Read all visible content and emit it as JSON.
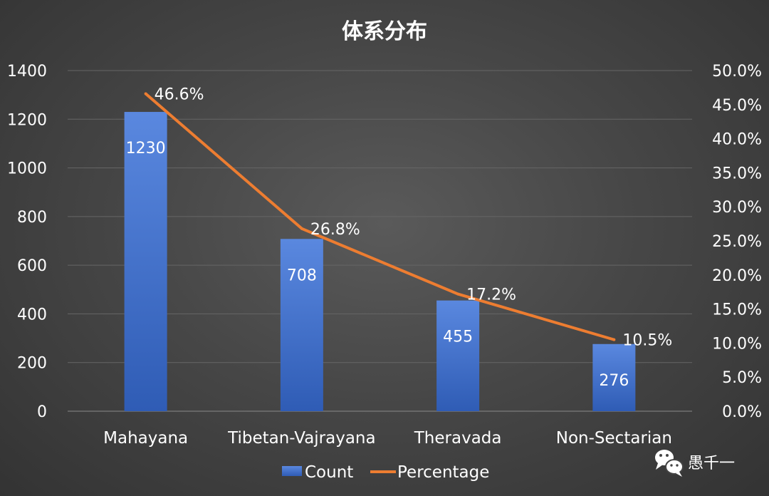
{
  "chart_data": {
    "type": "bar",
    "title": "体系分布",
    "categories": [
      "Mahayana",
      "Tibetan-Vajrayana",
      "Theravada",
      "Non-Sectarian"
    ],
    "series": [
      {
        "name": "Count",
        "type": "bar",
        "axis": "left",
        "values": [
          1230,
          708,
          455,
          276
        ],
        "labels": [
          "1230",
          "708",
          "455",
          "276"
        ],
        "color": "#4472c4"
      },
      {
        "name": "Percentage",
        "type": "line",
        "axis": "right",
        "values": [
          46.6,
          26.8,
          17.2,
          10.5
        ],
        "labels": [
          "46.6%",
          "26.8%",
          "17.2%",
          "10.5%"
        ],
        "color": "#ed7d31"
      }
    ],
    "y_left": {
      "min": 0,
      "max": 1400,
      "ticks": [
        0,
        200,
        400,
        600,
        800,
        1000,
        1200,
        1400
      ],
      "tick_labels": [
        "0",
        "200",
        "400",
        "600",
        "800",
        "1000",
        "1200",
        "1400"
      ]
    },
    "y_right": {
      "min": 0,
      "max": 50,
      "ticks": [
        0,
        5,
        10,
        15,
        20,
        25,
        30,
        35,
        40,
        45,
        50
      ],
      "tick_labels": [
        "0.0%",
        "5.0%",
        "10.0%",
        "15.0%",
        "20.0%",
        "25.0%",
        "30.0%",
        "35.0%",
        "40.0%",
        "45.0%",
        "50.0%"
      ]
    },
    "grid": true,
    "legend": "bottom"
  },
  "watermark": {
    "text": "愚千一",
    "icon": "wechat-icon"
  }
}
